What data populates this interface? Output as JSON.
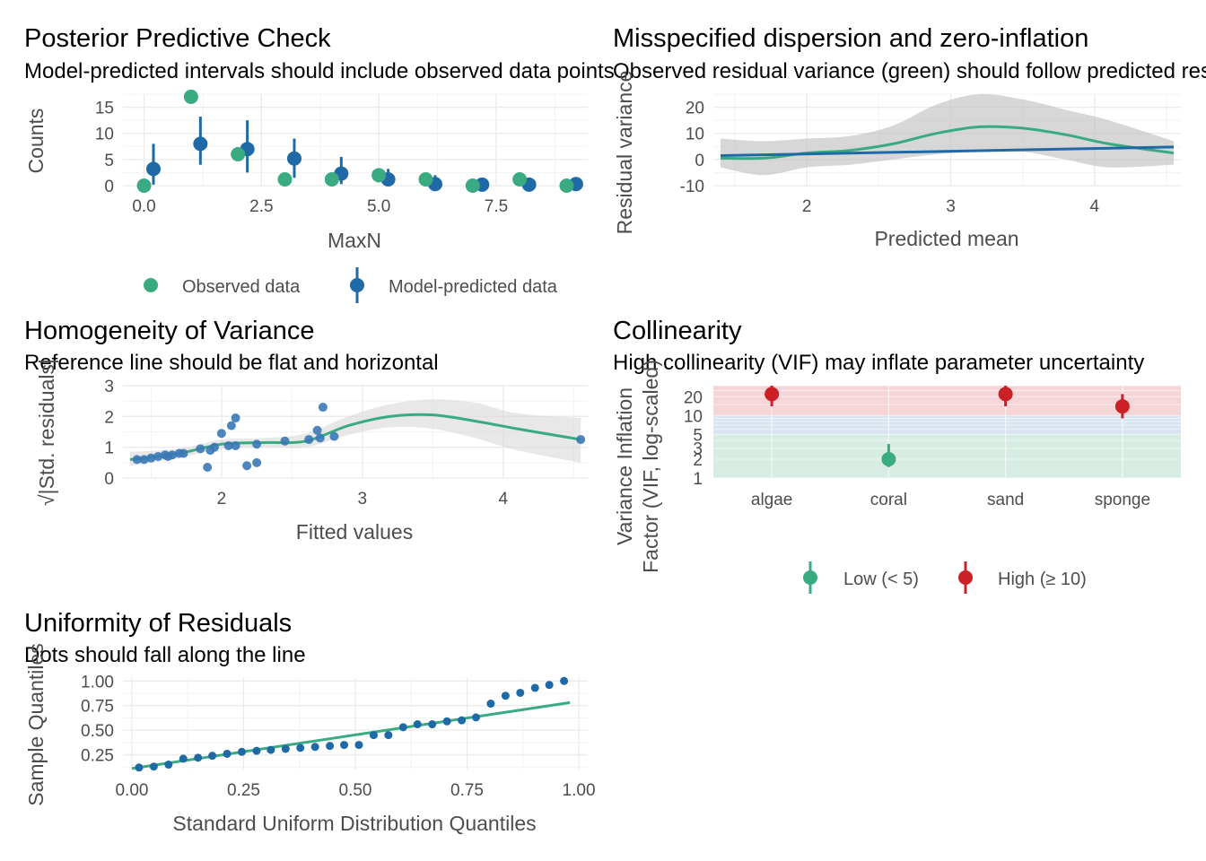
{
  "colors": {
    "green": "#3aaa80",
    "blue": "#1f69a6",
    "red": "#cc2027",
    "lightred": "#f5d5d7",
    "lightblue": "#d8e4ef",
    "lightgreen": "#d7ede3",
    "band": "#bdbdbd"
  },
  "chart_data": [
    {
      "id": "ppc",
      "type": "scatter",
      "title": "Posterior Predictive Check",
      "subtitle": "Model-predicted intervals should include observed data points",
      "xlabel": "MaxN",
      "ylabel": "Counts",
      "xticks": [
        "0.0",
        "2.5",
        "5.0",
        "7.5"
      ],
      "yticks": [
        "0",
        "5",
        "10",
        "15"
      ],
      "xlim": [
        -0.45,
        9.45
      ],
      "ylim": [
        0,
        17.5
      ],
      "series": [
        {
          "name": "Observed data",
          "x": [
            0,
            1,
            2,
            3,
            4,
            5,
            6,
            7,
            8,
            9
          ],
          "y": [
            0,
            17,
            6,
            1.2,
            1.2,
            2,
            1.2,
            0,
            1.2,
            0
          ]
        },
        {
          "name": "Model-predicted data",
          "x": [
            0.2,
            1.2,
            2.2,
            3.2,
            4.2,
            5.2,
            6.2,
            7.2,
            8.2,
            9.2
          ],
          "y": [
            3.2,
            8,
            7,
            5.2,
            2.3,
            1.2,
            0.3,
            0.2,
            0.2,
            0.3
          ],
          "low": [
            0.2,
            4,
            2.5,
            1.5,
            0.3,
            0,
            0,
            0,
            0,
            0
          ],
          "high": [
            8,
            13.2,
            12.5,
            9,
            5.5,
            3.2,
            2,
            1.2,
            1.3,
            1.5
          ]
        }
      ],
      "legend": [
        "Observed data",
        "Model-predicted data"
      ]
    },
    {
      "id": "disp",
      "type": "line",
      "title": "Misspecified dispersion and zero-inflation",
      "subtitle": "Observed residual variance (green) should follow predicted residual variance (blue).",
      "xlabel": "Predicted mean",
      "ylabel": "Residual variance",
      "xticks": [
        "2",
        "3",
        "4"
      ],
      "yticks": [
        "-10",
        "0",
        "10",
        "20"
      ],
      "xlim": [
        1.35,
        4.6
      ],
      "ylim": [
        -10,
        25
      ],
      "series": [
        {
          "name": "observed",
          "x": [
            1.4,
            1.7,
            2.0,
            2.3,
            2.6,
            2.9,
            3.2,
            3.5,
            3.8,
            4.1,
            4.55
          ],
          "y": [
            0.5,
            0.5,
            2.5,
            3.5,
            6,
            10,
            12.5,
            12,
            9.5,
            6,
            2.5
          ],
          "low": [
            -3,
            -6,
            -3,
            -2,
            0,
            2,
            3,
            3,
            0,
            -3,
            -2
          ],
          "high": [
            8,
            7,
            8,
            9,
            13,
            21,
            25,
            23,
            19,
            15,
            7
          ]
        },
        {
          "name": "predicted",
          "x": [
            1.4,
            4.55
          ],
          "y": [
            1.5,
            4.8
          ]
        }
      ]
    },
    {
      "id": "homog",
      "type": "scatter",
      "title": "Homogeneity of Variance",
      "subtitle": "Reference line should be flat and horizontal",
      "xlabel": "Fitted values",
      "ylabel": "√|Std. residuals|",
      "xticks": [
        "2",
        "3",
        "4"
      ],
      "yticks": [
        "0",
        "1",
        "2",
        "3"
      ],
      "xlim": [
        1.3,
        4.6
      ],
      "ylim": [
        0,
        3
      ],
      "points": {
        "x": [
          1.4,
          1.45,
          1.5,
          1.55,
          1.6,
          1.62,
          1.65,
          1.7,
          1.73,
          1.85,
          1.9,
          1.92,
          1.95,
          2.0,
          2.05,
          2.07,
          2.1,
          2.1,
          2.18,
          2.25,
          2.25,
          2.45,
          2.62,
          2.68,
          2.7,
          2.72,
          2.8,
          4.55
        ],
        "y": [
          0.6,
          0.6,
          0.65,
          0.7,
          0.75,
          0.7,
          0.75,
          0.8,
          0.8,
          0.95,
          0.35,
          0.9,
          1.0,
          1.45,
          1.05,
          1.7,
          1.95,
          1.05,
          0.4,
          1.1,
          0.5,
          1.2,
          1.25,
          1.55,
          1.3,
          2.3,
          1.35,
          1.25
        ]
      },
      "smooth": {
        "x": [
          1.35,
          1.7,
          2.0,
          2.3,
          2.6,
          2.9,
          3.2,
          3.5,
          3.8,
          4.1,
          4.55
        ],
        "y": [
          0.6,
          0.8,
          1.1,
          1.15,
          1.2,
          1.7,
          2.0,
          2.05,
          1.85,
          1.6,
          1.25
        ],
        "low": [
          0.4,
          0.65,
          0.95,
          1.0,
          1.0,
          1.4,
          1.65,
          1.6,
          1.3,
          0.9,
          0.5
        ],
        "high": [
          0.85,
          0.95,
          1.25,
          1.3,
          1.45,
          2.0,
          2.4,
          2.55,
          2.45,
          2.1,
          1.95
        ]
      }
    },
    {
      "id": "vif",
      "type": "scatter",
      "title": "Collinearity",
      "subtitle": "High collinearity (VIF) may inflate parameter uncertainty",
      "ylabel": "Variance Inflation Factor (VIF, log-scaled)",
      "categories": [
        "algae",
        "coral",
        "sand",
        "sponge"
      ],
      "yticks": [
        "1",
        "2",
        "3",
        "5",
        "10",
        "20"
      ],
      "ylim": [
        1,
        30
      ],
      "scale": "log",
      "values": [
        22,
        2,
        22,
        14
      ],
      "low": [
        14,
        1.5,
        14,
        9
      ],
      "high": [
        32,
        3.5,
        32,
        22
      ],
      "groups": [
        "High (≥ 10)",
        "Low (< 5)",
        "High (≥ 10)",
        "High (≥ 10)"
      ],
      "legend": [
        "Low (< 5)",
        "High (≥ 10)"
      ]
    },
    {
      "id": "qq",
      "type": "scatter",
      "title": "Uniformity of Residuals",
      "subtitle": "Dots should fall along the line",
      "xlabel": "Standard Uniform Distribution Quantiles",
      "ylabel": "Sample Quantiles",
      "xticks": [
        "0.00",
        "0.25",
        "0.50",
        "0.75",
        "1.00"
      ],
      "yticks": [
        "0.25",
        "0.50",
        "0.75",
        "1.00"
      ],
      "xlim": [
        -0.02,
        1.02
      ],
      "ylim": [
        0.1,
        1.03
      ],
      "points": {
        "x": [
          0.016,
          0.049,
          0.082,
          0.115,
          0.148,
          0.18,
          0.213,
          0.246,
          0.279,
          0.311,
          0.344,
          0.377,
          0.41,
          0.443,
          0.475,
          0.508,
          0.541,
          0.574,
          0.607,
          0.639,
          0.672,
          0.705,
          0.738,
          0.77,
          0.803,
          0.836,
          0.869,
          0.902,
          0.934,
          0.967
        ],
        "y": [
          0.12,
          0.13,
          0.15,
          0.21,
          0.22,
          0.24,
          0.26,
          0.28,
          0.29,
          0.3,
          0.31,
          0.32,
          0.33,
          0.34,
          0.35,
          0.35,
          0.45,
          0.45,
          0.53,
          0.56,
          0.56,
          0.59,
          0.6,
          0.63,
          0.77,
          0.85,
          0.88,
          0.93,
          0.96,
          1.0
        ]
      },
      "line": {
        "x": [
          0.0,
          0.98
        ],
        "y": [
          0.11,
          0.78
        ]
      }
    }
  ]
}
